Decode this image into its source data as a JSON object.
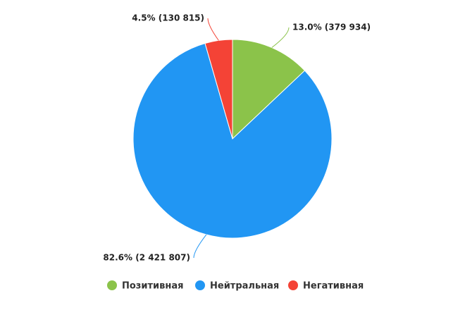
{
  "chart_data": {
    "type": "pie",
    "categories": [
      "Позитивная",
      "Нейтральная",
      "Негативная"
    ],
    "values": [
      379934,
      2421807,
      130815
    ],
    "value_labels": [
      "13.0% (379 934)",
      "82.6% (2 421 807)",
      "4.5% (130 815)"
    ],
    "colors": [
      "#8bc34a",
      "#2196f3",
      "#f44336"
    ],
    "legend": "bottom"
  }
}
